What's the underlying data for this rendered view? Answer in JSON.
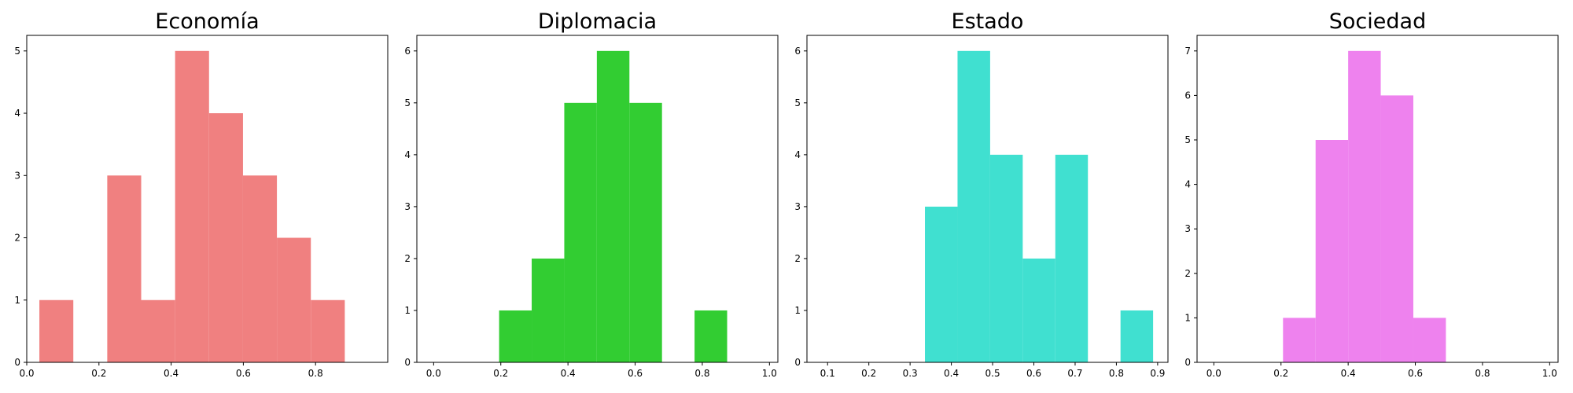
{
  "chart_data": [
    {
      "type": "histogram",
      "title": "Economía",
      "color": "#f08080",
      "xlim": [
        0.0,
        1.0
      ],
      "ylim": [
        0,
        5.25
      ],
      "xticks": [
        "0.0",
        "0.2",
        "0.4",
        "0.6",
        "0.8"
      ],
      "xtick_values": [
        0.0,
        0.2,
        0.4,
        0.6,
        0.8
      ],
      "yticks": [
        "0",
        "1",
        "2",
        "3",
        "4",
        "5"
      ],
      "ytick_values": [
        0,
        1,
        2,
        3,
        4,
        5
      ],
      "bins": [
        {
          "start": 0.035,
          "end": 0.129,
          "count": 1
        },
        {
          "start": 0.129,
          "end": 0.223,
          "count": 0
        },
        {
          "start": 0.223,
          "end": 0.317,
          "count": 3
        },
        {
          "start": 0.317,
          "end": 0.411,
          "count": 1
        },
        {
          "start": 0.411,
          "end": 0.505,
          "count": 5
        },
        {
          "start": 0.505,
          "end": 0.599,
          "count": 4
        },
        {
          "start": 0.599,
          "end": 0.693,
          "count": 3
        },
        {
          "start": 0.693,
          "end": 0.787,
          "count": 2
        },
        {
          "start": 0.787,
          "end": 0.881,
          "count": 1
        }
      ]
    },
    {
      "type": "histogram",
      "title": "Diplomacia",
      "color": "#32cd32",
      "xlim": [
        -0.05,
        1.025
      ],
      "ylim": [
        0,
        6.3
      ],
      "xticks": [
        "0.0",
        "0.2",
        "0.4",
        "0.6",
        "0.8",
        "1.0"
      ],
      "xtick_values": [
        0.0,
        0.2,
        0.4,
        0.6,
        0.8,
        1.0
      ],
      "yticks": [
        "0",
        "1",
        "2",
        "3",
        "4",
        "5",
        "6"
      ],
      "ytick_values": [
        0,
        1,
        2,
        3,
        4,
        5,
        6
      ],
      "bins": [
        {
          "start": 0.195,
          "end": 0.292,
          "count": 1
        },
        {
          "start": 0.292,
          "end": 0.389,
          "count": 2
        },
        {
          "start": 0.389,
          "end": 0.486,
          "count": 5
        },
        {
          "start": 0.486,
          "end": 0.583,
          "count": 6
        },
        {
          "start": 0.583,
          "end": 0.68,
          "count": 5
        },
        {
          "start": 0.68,
          "end": 0.777,
          "count": 0
        },
        {
          "start": 0.777,
          "end": 0.874,
          "count": 1
        }
      ]
    },
    {
      "type": "histogram",
      "title": "Estado",
      "color": "#40e0d0",
      "xlim": [
        0.05,
        0.925
      ],
      "ylim": [
        0,
        6.3
      ],
      "xticks": [
        "0.1",
        "0.2",
        "0.3",
        "0.4",
        "0.5",
        "0.6",
        "0.7",
        "0.8",
        "0.9"
      ],
      "xtick_values": [
        0.1,
        0.2,
        0.3,
        0.4,
        0.5,
        0.6,
        0.7,
        0.8,
        0.9
      ],
      "yticks": [
        "0",
        "1",
        "2",
        "3",
        "4",
        "5",
        "6"
      ],
      "ytick_values": [
        0,
        1,
        2,
        3,
        4,
        5,
        6
      ],
      "bins": [
        {
          "start": 0.336,
          "end": 0.415,
          "count": 3
        },
        {
          "start": 0.415,
          "end": 0.494,
          "count": 6
        },
        {
          "start": 0.494,
          "end": 0.573,
          "count": 4
        },
        {
          "start": 0.573,
          "end": 0.652,
          "count": 2
        },
        {
          "start": 0.652,
          "end": 0.731,
          "count": 4
        },
        {
          "start": 0.731,
          "end": 0.81,
          "count": 0
        },
        {
          "start": 0.81,
          "end": 0.889,
          "count": 1
        }
      ]
    },
    {
      "type": "histogram",
      "title": "Sociedad",
      "color": "#ee82ee",
      "xlim": [
        -0.05,
        1.025
      ],
      "ylim": [
        0,
        7.35
      ],
      "xticks": [
        "0.0",
        "0.2",
        "0.4",
        "0.6",
        "0.8",
        "1.0"
      ],
      "xtick_values": [
        0.0,
        0.2,
        0.4,
        0.6,
        0.8,
        1.0
      ],
      "yticks": [
        "0",
        "1",
        "2",
        "3",
        "4",
        "5",
        "6",
        "7"
      ],
      "ytick_values": [
        0,
        1,
        2,
        3,
        4,
        5,
        6,
        7
      ],
      "bins": [
        {
          "start": 0.206,
          "end": 0.303,
          "count": 1
        },
        {
          "start": 0.303,
          "end": 0.4,
          "count": 5
        },
        {
          "start": 0.4,
          "end": 0.497,
          "count": 7
        },
        {
          "start": 0.497,
          "end": 0.594,
          "count": 6
        },
        {
          "start": 0.594,
          "end": 0.691,
          "count": 1
        }
      ]
    }
  ]
}
